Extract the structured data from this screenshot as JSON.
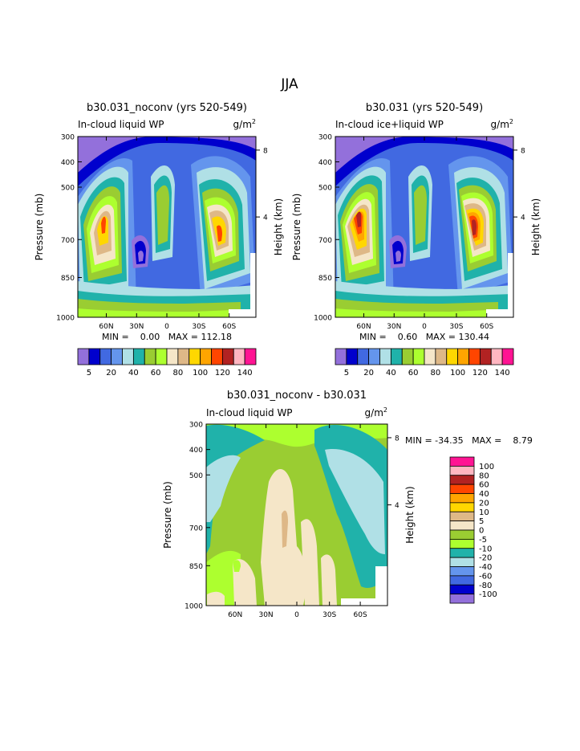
{
  "page": {
    "title": "JJA"
  },
  "palettes": {
    "abs": [
      "#9370DB",
      "#0000CD",
      "#4169E1",
      "#6495ED",
      "#B0E0E6",
      "#20B2AA",
      "#9ACD32",
      "#ADFF2F",
      "#F5E6C8",
      "#DEB887",
      "#FFD700",
      "#FFA500",
      "#FF4500",
      "#B22222",
      "#FFB6C1",
      "#FF1493"
    ],
    "diff": [
      "#9370DB",
      "#0000CD",
      "#4169E1",
      "#6495ED",
      "#B0E0E6",
      "#20B2AA",
      "#ADFF2F",
      "#9ACD32",
      "#F5E6C8",
      "#DEB887",
      "#FFD700",
      "#FFA500",
      "#FF4500",
      "#B22222",
      "#FFB6C1",
      "#FF1493"
    ]
  },
  "chart_data": [
    {
      "type": "heatmap",
      "title": "b30.031_noconv (yrs 520-549)",
      "left_label": "In-cloud liquid WP",
      "units": "g/m",
      "units_sup": "2",
      "ylabel": "Pressure (mb)",
      "ylabel_right": "Height (km)",
      "y_ticks": [
        "300",
        "400",
        "500",
        "700",
        "850",
        "1000"
      ],
      "y_right_ticks": [
        "8",
        "4"
      ],
      "x_ticks": [
        "60N",
        "30N",
        "0",
        "30S",
        "60S"
      ],
      "stats": "MIN =    0.00   MAX = 112.18",
      "colorbar_labels": [
        "5",
        "20",
        "40",
        "60",
        "80",
        "100",
        "120",
        "140"
      ]
    },
    {
      "type": "heatmap",
      "title": "b30.031 (yrs 520-549)",
      "left_label": "In-cloud ice+liquid WP",
      "units": "g/m",
      "units_sup": "2",
      "ylabel": "Pressure (mb)",
      "ylabel_right": "Height (km)",
      "y_ticks": [
        "300",
        "400",
        "500",
        "700",
        "850",
        "1000"
      ],
      "y_right_ticks": [
        "8",
        "4"
      ],
      "x_ticks": [
        "60N",
        "30N",
        "0",
        "30S",
        "60S"
      ],
      "stats": "MIN =    0.60   MAX = 130.44",
      "colorbar_labels": [
        "5",
        "20",
        "40",
        "60",
        "80",
        "100",
        "120",
        "140"
      ]
    },
    {
      "type": "heatmap",
      "title": "b30.031_noconv - b30.031",
      "left_label": "In-cloud liquid WP",
      "units": "g/m",
      "units_sup": "2",
      "ylabel": "Pressure (mb)",
      "ylabel_right": "Height (km)",
      "y_ticks": [
        "300",
        "400",
        "500",
        "700",
        "850",
        "1000"
      ],
      "y_right_ticks": [
        "8",
        "4"
      ],
      "x_ticks": [
        "60N",
        "30N",
        "0",
        "30S",
        "60S"
      ],
      "stats": "MIN = -34.35   MAX =    8.79",
      "colorbar_labels": [
        "100",
        "80",
        "60",
        "40",
        "20",
        "10",
        "5",
        "0",
        "-5",
        "-10",
        "-20",
        "-40",
        "-60",
        "-80",
        "-100"
      ]
    }
  ]
}
